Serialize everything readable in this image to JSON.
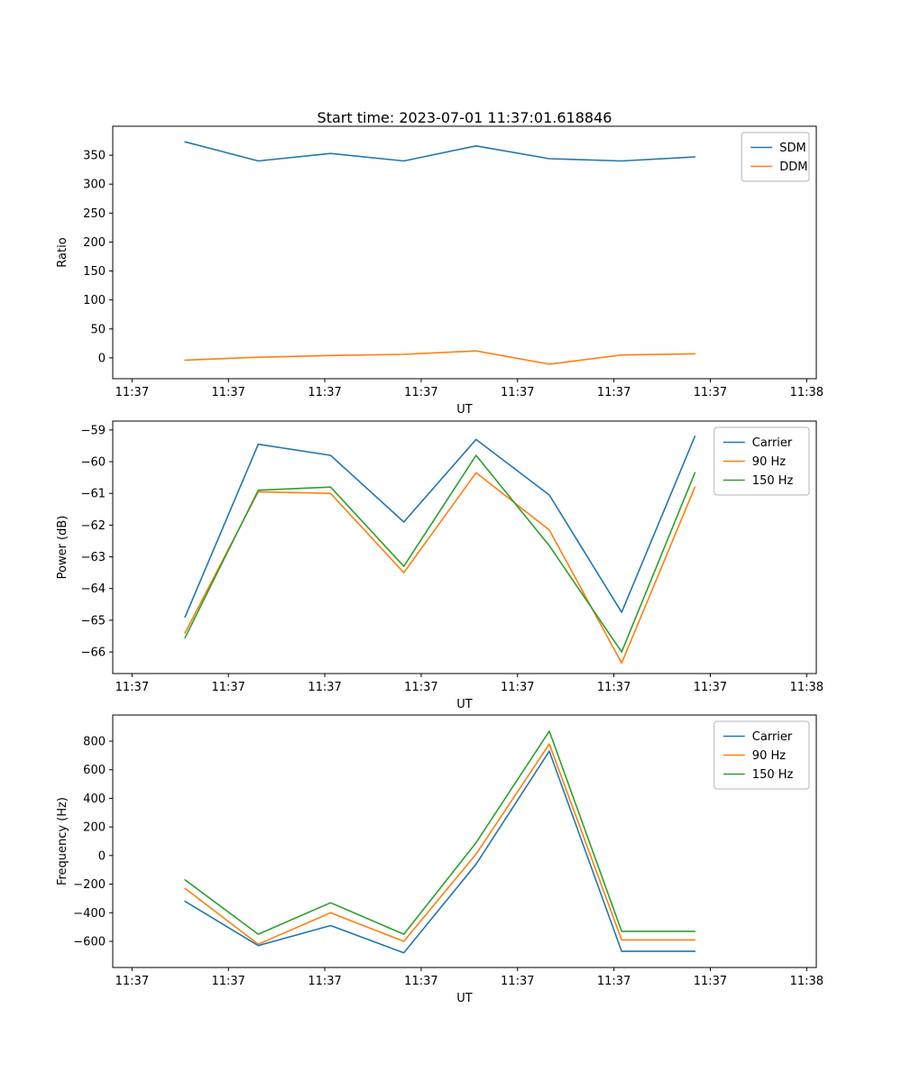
{
  "figure": {
    "title": "Start time: 2023-07-01 11:37:01.618846"
  },
  "chart_data": [
    {
      "type": "line",
      "name": "ratio",
      "xlabel": "UT",
      "ylabel": "Ratio",
      "xlim": [
        -0.2,
        7.1
      ],
      "ylim": [
        -36,
        400
      ],
      "xticks": {
        "values": [
          0,
          1,
          2,
          3,
          4,
          5,
          6,
          7
        ],
        "labels": [
          "11:37",
          "11:37",
          "11:37",
          "11:37",
          "11:37",
          "11:37",
          "11:37",
          "11:38"
        ]
      },
      "yticks": [
        0,
        50,
        100,
        150,
        200,
        250,
        300,
        350
      ],
      "grid": false,
      "legend_position": "upper right",
      "x": [
        0.55,
        1.31,
        2.06,
        2.82,
        3.57,
        4.33,
        5.08,
        5.84
      ],
      "series": [
        {
          "name": "SDM",
          "color": "#1f77b4",
          "values": [
            373,
            340,
            353,
            340,
            366,
            344,
            340,
            347
          ]
        },
        {
          "name": "DDM",
          "color": "#ff7f0e",
          "values": [
            -4,
            1,
            4,
            6,
            12,
            -11,
            5,
            7
          ]
        }
      ]
    },
    {
      "type": "line",
      "name": "power",
      "xlabel": "UT",
      "ylabel": "Power (dB)",
      "xlim": [
        -0.2,
        7.1
      ],
      "ylim": [
        -66.68,
        -58.72
      ],
      "xticks": {
        "values": [
          0,
          1,
          2,
          3,
          4,
          5,
          6,
          7
        ],
        "labels": [
          "11:37",
          "11:37",
          "11:37",
          "11:37",
          "11:37",
          "11:37",
          "11:37",
          "11:38"
        ]
      },
      "yticks": [
        -66,
        -65,
        -64,
        -63,
        -62,
        -61,
        -60,
        -59
      ],
      "grid": false,
      "legend_position": "upper right",
      "x": [
        0.55,
        1.31,
        2.06,
        2.82,
        3.57,
        4.33,
        5.08,
        5.84
      ],
      "series": [
        {
          "name": "Carrier",
          "color": "#1f77b4",
          "values": [
            -64.9,
            -59.45,
            -59.8,
            -61.9,
            -59.3,
            -61.05,
            -64.75,
            -59.2
          ]
        },
        {
          "name": "90 Hz",
          "color": "#ff7f0e",
          "values": [
            -65.4,
            -60.95,
            -61.0,
            -63.5,
            -60.35,
            -62.15,
            -66.35,
            -60.8
          ]
        },
        {
          "name": "150 Hz",
          "color": "#2ca02c",
          "values": [
            -65.55,
            -60.9,
            -60.8,
            -63.3,
            -59.8,
            -62.65,
            -66.0,
            -60.35
          ]
        }
      ]
    },
    {
      "type": "line",
      "name": "frequency",
      "xlabel": "UT",
      "ylabel": "Frequency (Hz)",
      "xlim": [
        -0.2,
        7.1
      ],
      "ylim": [
        -783,
        983
      ],
      "xticks": {
        "values": [
          0,
          1,
          2,
          3,
          4,
          5,
          6,
          7
        ],
        "labels": [
          "11:37",
          "11:37",
          "11:37",
          "11:37",
          "11:37",
          "11:37",
          "11:37",
          "11:38"
        ]
      },
      "yticks": [
        -600,
        -400,
        -200,
        0,
        200,
        400,
        600,
        800
      ],
      "grid": false,
      "legend_position": "upper right",
      "x": [
        0.55,
        1.31,
        2.06,
        2.82,
        3.57,
        4.33,
        5.08,
        5.84
      ],
      "series": [
        {
          "name": "Carrier",
          "color": "#1f77b4",
          "values": [
            -320,
            -630,
            -490,
            -680,
            -60,
            730,
            -670,
            -670
          ]
        },
        {
          "name": "90 Hz",
          "color": "#ff7f0e",
          "values": [
            -230,
            -620,
            -400,
            -600,
            10,
            780,
            -590,
            -590
          ]
        },
        {
          "name": "150 Hz",
          "color": "#2ca02c",
          "values": [
            -170,
            -550,
            -330,
            -550,
            90,
            870,
            -530,
            -530
          ]
        }
      ]
    }
  ],
  "colors": {
    "axis": "#000000",
    "legend_border": "#b3b3b3",
    "background": "#ffffff"
  }
}
